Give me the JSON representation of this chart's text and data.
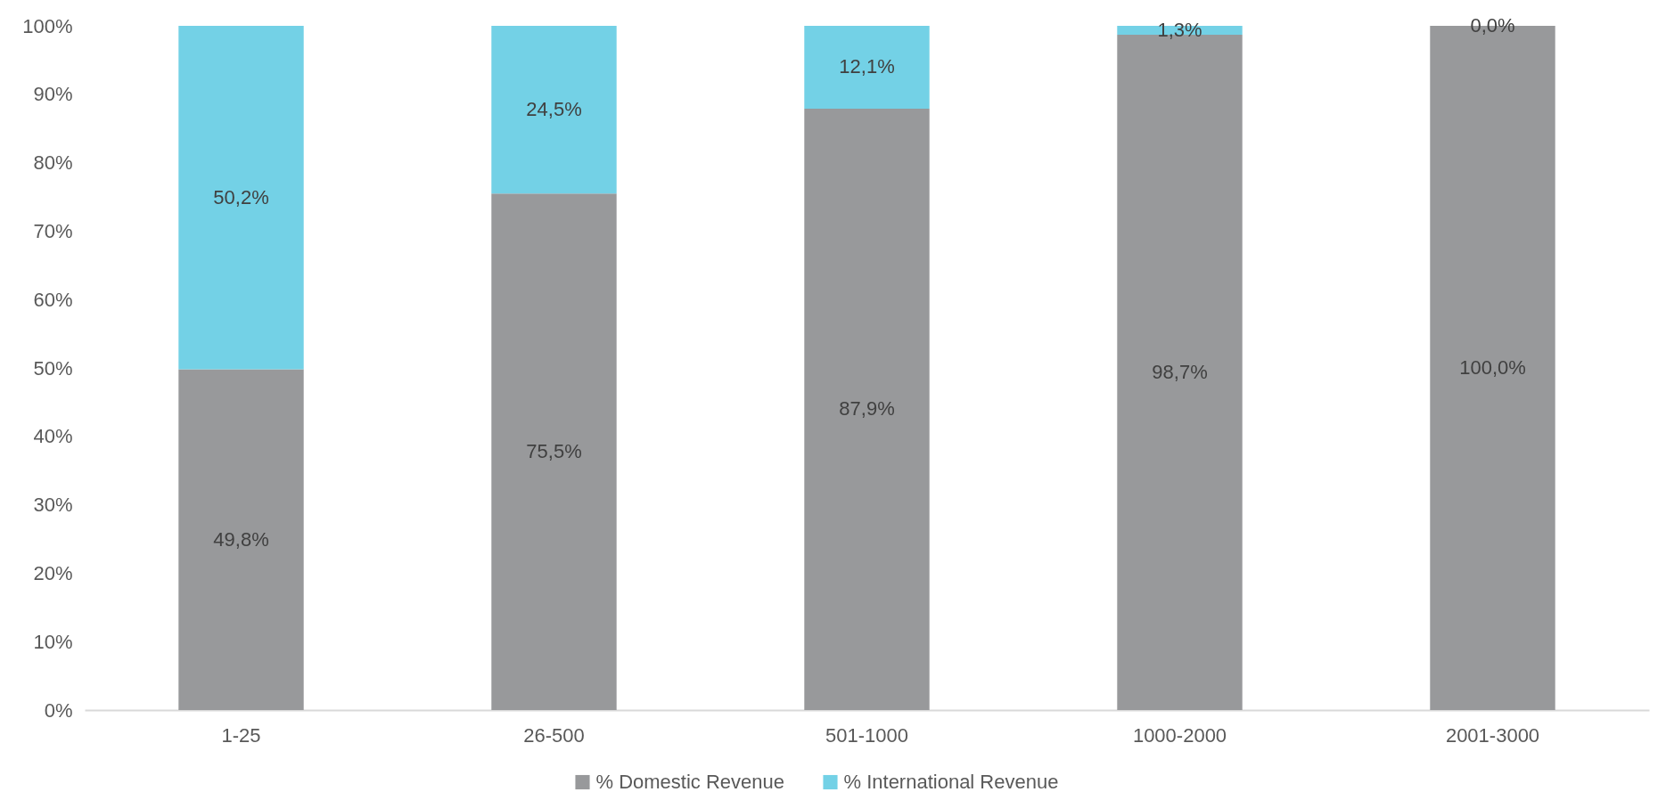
{
  "chart_data": {
    "type": "bar",
    "stacked": true,
    "categories": [
      "1-25",
      "26-500",
      "501-1000",
      "1000-2000",
      "2001-3000"
    ],
    "series": [
      {
        "name": "% Domestic Revenue",
        "color": "#98999b",
        "values": [
          49.8,
          75.5,
          87.9,
          98.7,
          100.0
        ],
        "value_labels": [
          "49,8%",
          "75,5%",
          "87,9%",
          "98,7%",
          "100,0%"
        ]
      },
      {
        "name": "% International Revenue",
        "color": "#73d1e6",
        "values": [
          50.2,
          24.5,
          12.1,
          1.3,
          0.0
        ],
        "value_labels": [
          "50,2%",
          "24,5%",
          "12,1%",
          "1,3%",
          "0,0%"
        ]
      }
    ],
    "ylim": [
      0,
      100
    ],
    "yticks": [
      {
        "value": 0,
        "label": "0%"
      },
      {
        "value": 10,
        "label": "10%"
      },
      {
        "value": 20,
        "label": "20%"
      },
      {
        "value": 30,
        "label": "30%"
      },
      {
        "value": 40,
        "label": "40%"
      },
      {
        "value": 50,
        "label": "50%"
      },
      {
        "value": 60,
        "label": "60%"
      },
      {
        "value": 70,
        "label": "70%"
      },
      {
        "value": 80,
        "label": "80%"
      },
      {
        "value": 90,
        "label": "90%"
      },
      {
        "value": 100,
        "label": "100%"
      }
    ],
    "grid": false,
    "legend": "bottom"
  }
}
